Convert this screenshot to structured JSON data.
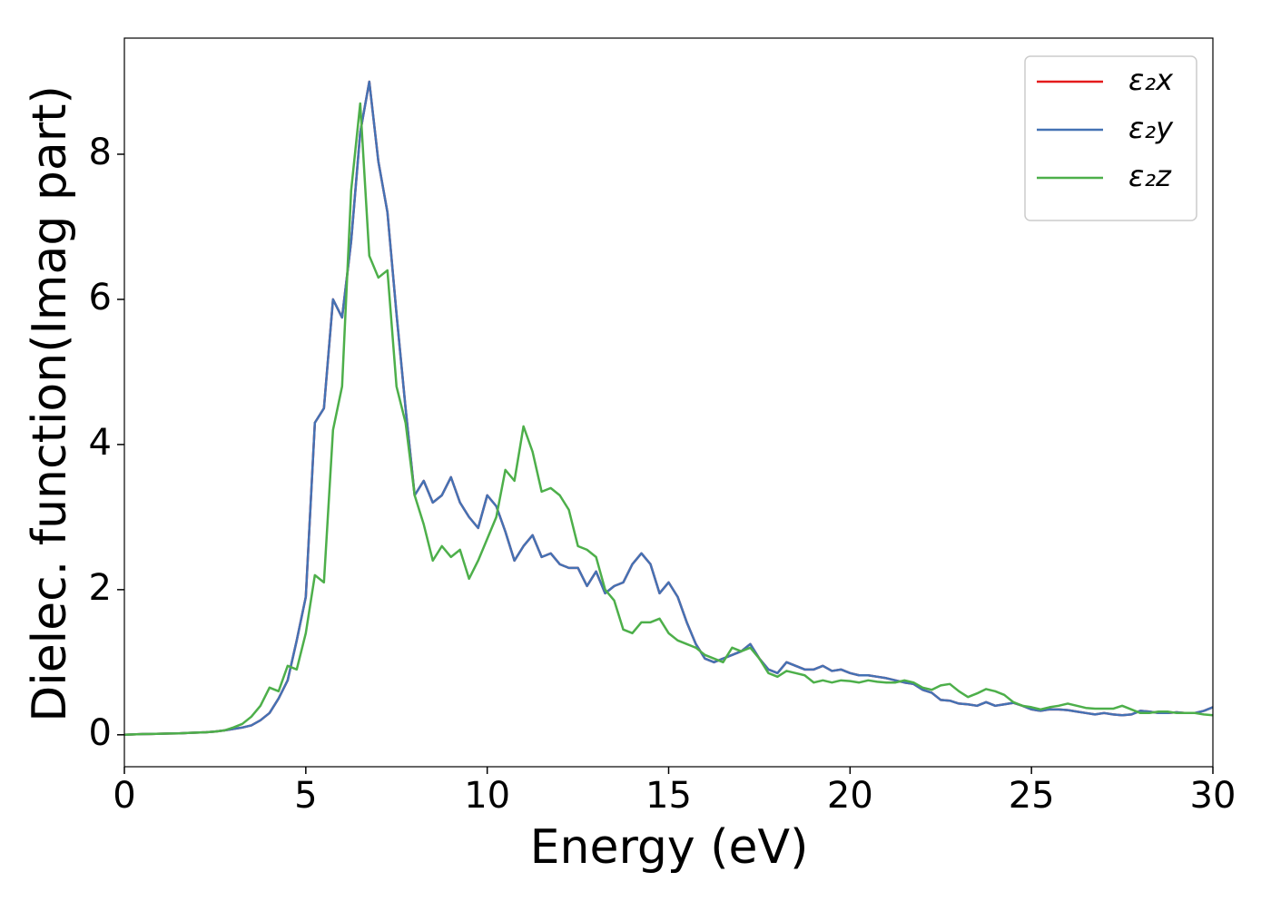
{
  "chart_data": {
    "type": "line",
    "xlabel": "Energy (eV)",
    "ylabel": "Dielec. function(Imag part)",
    "xlim": [
      0,
      30
    ],
    "ylim": [
      -0.44,
      9.6
    ],
    "xticks": [
      0,
      5,
      10,
      15,
      20,
      25,
      30
    ],
    "yticks": [
      0,
      2,
      4,
      6,
      8
    ],
    "grid": false,
    "legend": "upper right",
    "x": [
      0,
      0.25,
      0.5,
      0.75,
      1,
      1.25,
      1.5,
      1.75,
      2,
      2.25,
      2.5,
      2.75,
      3,
      3.25,
      3.5,
      3.75,
      4,
      4.25,
      4.5,
      4.75,
      5,
      5.25,
      5.5,
      5.75,
      6,
      6.25,
      6.5,
      6.75,
      7,
      7.25,
      7.5,
      7.75,
      8,
      8.25,
      8.5,
      8.75,
      9,
      9.25,
      9.5,
      9.75,
      10,
      10.25,
      10.5,
      10.75,
      11,
      11.25,
      11.5,
      11.75,
      12,
      12.25,
      12.5,
      12.75,
      13,
      13.25,
      13.5,
      13.75,
      14,
      14.25,
      14.5,
      14.75,
      15,
      15.25,
      15.5,
      15.75,
      16,
      16.25,
      16.5,
      16.75,
      17,
      17.25,
      17.5,
      17.75,
      18,
      18.25,
      18.5,
      18.75,
      19,
      19.25,
      19.5,
      19.75,
      20,
      20.25,
      20.5,
      20.75,
      21,
      21.25,
      21.5,
      21.75,
      22,
      22.25,
      22.5,
      22.75,
      23,
      23.25,
      23.5,
      23.75,
      24,
      24.25,
      24.5,
      24.75,
      25,
      25.25,
      25.5,
      25.75,
      26,
      26.25,
      26.5,
      26.75,
      27,
      27.25,
      27.5,
      27.75,
      28,
      28.25,
      28.5,
      28.75,
      29,
      29.25,
      29.5,
      29.75,
      30
    ],
    "series": [
      {
        "name": "ε₂x",
        "color": "#e41a1c",
        "values": [
          0,
          0.005,
          0.01,
          0.012,
          0.015,
          0.018,
          0.02,
          0.025,
          0.03,
          0.035,
          0.045,
          0.06,
          0.08,
          0.1,
          0.13,
          0.2,
          0.3,
          0.5,
          0.75,
          1.3,
          1.9,
          4.3,
          4.5,
          6.0,
          5.75,
          6.8,
          8.3,
          9.0,
          7.9,
          7.2,
          5.8,
          4.5,
          3.3,
          3.5,
          3.2,
          3.3,
          3.55,
          3.2,
          3.0,
          2.85,
          3.3,
          3.15,
          2.8,
          2.4,
          2.6,
          2.75,
          2.45,
          2.5,
          2.35,
          2.3,
          2.3,
          2.05,
          2.25,
          1.95,
          2.05,
          2.1,
          2.35,
          2.5,
          2.35,
          1.95,
          2.1,
          1.9,
          1.55,
          1.25,
          1.05,
          1.0,
          1.05,
          1.1,
          1.15,
          1.25,
          1.05,
          0.9,
          0.85,
          1.0,
          0.95,
          0.9,
          0.9,
          0.95,
          0.88,
          0.9,
          0.85,
          0.82,
          0.82,
          0.8,
          0.78,
          0.75,
          0.72,
          0.7,
          0.62,
          0.58,
          0.48,
          0.47,
          0.43,
          0.42,
          0.4,
          0.45,
          0.4,
          0.42,
          0.44,
          0.4,
          0.35,
          0.33,
          0.35,
          0.35,
          0.34,
          0.32,
          0.3,
          0.28,
          0.3,
          0.28,
          0.27,
          0.28,
          0.33,
          0.32,
          0.3,
          0.3,
          0.31,
          0.3,
          0.3,
          0.33,
          0.38
        ]
      },
      {
        "name": "ε₂y",
        "color": "#4472b4",
        "values": [
          0,
          0.005,
          0.01,
          0.012,
          0.015,
          0.018,
          0.02,
          0.025,
          0.03,
          0.035,
          0.045,
          0.06,
          0.08,
          0.1,
          0.13,
          0.2,
          0.3,
          0.5,
          0.75,
          1.3,
          1.9,
          4.3,
          4.5,
          6.0,
          5.75,
          6.8,
          8.3,
          9.0,
          7.9,
          7.2,
          5.8,
          4.5,
          3.3,
          3.5,
          3.2,
          3.3,
          3.55,
          3.2,
          3.0,
          2.85,
          3.3,
          3.15,
          2.8,
          2.4,
          2.6,
          2.75,
          2.45,
          2.5,
          2.35,
          2.3,
          2.3,
          2.05,
          2.25,
          1.95,
          2.05,
          2.1,
          2.35,
          2.5,
          2.35,
          1.95,
          2.1,
          1.9,
          1.55,
          1.25,
          1.05,
          1.0,
          1.05,
          1.1,
          1.15,
          1.25,
          1.05,
          0.9,
          0.85,
          1.0,
          0.95,
          0.9,
          0.9,
          0.95,
          0.88,
          0.9,
          0.85,
          0.82,
          0.82,
          0.8,
          0.78,
          0.75,
          0.72,
          0.7,
          0.62,
          0.58,
          0.48,
          0.47,
          0.43,
          0.42,
          0.4,
          0.45,
          0.4,
          0.42,
          0.44,
          0.4,
          0.35,
          0.33,
          0.35,
          0.35,
          0.34,
          0.32,
          0.3,
          0.28,
          0.3,
          0.28,
          0.27,
          0.28,
          0.33,
          0.32,
          0.3,
          0.3,
          0.31,
          0.3,
          0.3,
          0.33,
          0.38
        ]
      },
      {
        "name": "ε₂z",
        "color": "#4daf4a",
        "values": [
          0,
          0.005,
          0.01,
          0.012,
          0.015,
          0.018,
          0.02,
          0.025,
          0.03,
          0.035,
          0.045,
          0.06,
          0.1,
          0.15,
          0.25,
          0.4,
          0.65,
          0.6,
          0.95,
          0.9,
          1.4,
          2.2,
          2.1,
          4.2,
          4.8,
          7.5,
          8.7,
          6.6,
          6.3,
          6.4,
          4.8,
          4.3,
          3.3,
          2.9,
          2.4,
          2.6,
          2.45,
          2.55,
          2.15,
          2.4,
          2.7,
          3.0,
          3.65,
          3.5,
          4.25,
          3.9,
          3.35,
          3.4,
          3.3,
          3.1,
          2.6,
          2.55,
          2.45,
          2.0,
          1.85,
          1.45,
          1.4,
          1.55,
          1.55,
          1.6,
          1.4,
          1.3,
          1.25,
          1.2,
          1.1,
          1.05,
          1.0,
          1.2,
          1.15,
          1.2,
          1.05,
          0.85,
          0.8,
          0.88,
          0.85,
          0.82,
          0.72,
          0.75,
          0.72,
          0.75,
          0.74,
          0.72,
          0.75,
          0.73,
          0.72,
          0.72,
          0.75,
          0.72,
          0.65,
          0.62,
          0.68,
          0.7,
          0.6,
          0.52,
          0.57,
          0.63,
          0.6,
          0.55,
          0.45,
          0.4,
          0.38,
          0.35,
          0.38,
          0.4,
          0.43,
          0.4,
          0.37,
          0.36,
          0.36,
          0.36,
          0.4,
          0.35,
          0.3,
          0.3,
          0.32,
          0.32,
          0.3,
          0.3,
          0.3,
          0.28,
          0.27
        ]
      }
    ]
  }
}
